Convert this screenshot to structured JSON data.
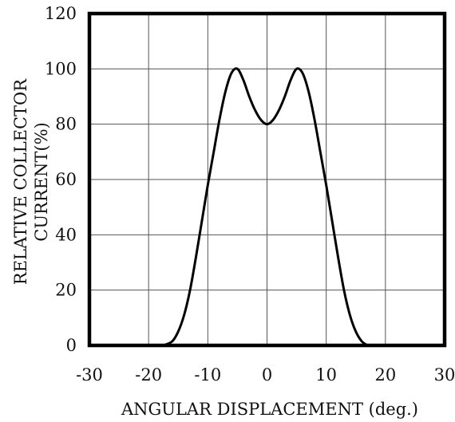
{
  "chart_data": {
    "type": "line",
    "xlabel": "ANGULAR DISPLACEMENT (deg.)",
    "ylabel_lines": [
      "RELATIVE COLLECTOR",
      "CURRENT(%)"
    ],
    "xlim": [
      -30,
      30
    ],
    "ylim": [
      0,
      120
    ],
    "x_ticks": [
      -30,
      -20,
      -10,
      0,
      10,
      20,
      30
    ],
    "y_ticks": [
      0,
      20,
      40,
      60,
      80,
      100,
      120
    ],
    "x_tick_labels": [
      "-30",
      "-20",
      "-10",
      "0",
      "10",
      "20",
      "30"
    ],
    "y_tick_labels": [
      "0",
      "20",
      "40",
      "60",
      "80",
      "100",
      "120"
    ],
    "grid": true,
    "series": [
      {
        "x": [
          -17.5,
          -16,
          -15,
          -14,
          -13,
          -12,
          -11,
          -10,
          -9,
          -8,
          -7,
          -6,
          -5,
          -4,
          -3,
          -2,
          -1,
          0,
          1,
          2,
          3,
          4,
          5,
          6,
          7,
          8,
          9,
          10,
          11,
          12,
          13,
          14,
          15,
          16,
          17
        ],
        "y": [
          0,
          1.5,
          5,
          11,
          20,
          32,
          45,
          58,
          70,
          82,
          92,
          98.5,
          100,
          96,
          90,
          85,
          81.5,
          80,
          81.5,
          85,
          90,
          96,
          100,
          98.5,
          92,
          82,
          70,
          58,
          45,
          32,
          20,
          11,
          5,
          1.5,
          0
        ]
      }
    ]
  }
}
